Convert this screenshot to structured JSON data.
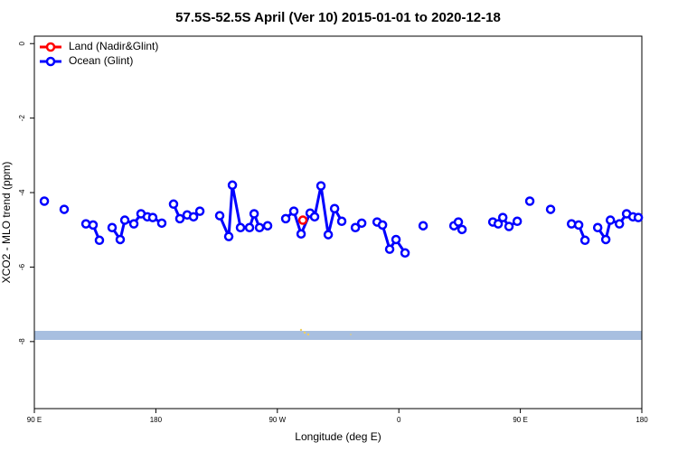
{
  "chart_data": {
    "type": "line",
    "title": "57.5S-52.5S April (Ver 10)   2015-01-01 to 2020-12-18",
    "x_label": "Longitude (deg E)",
    "y_label": "XCO2 - MLO trend (ppm)",
    "xlim": [
      90,
      540
    ],
    "ylim": [
      -9.8,
      0.2
    ],
    "xticks": [
      {
        "value": 90,
        "label": "90 E"
      },
      180,
      {
        "value": 270,
        "label": "90 W"
      },
      {
        "value": 360,
        "label": "0"
      },
      {
        "value": 450,
        "label": "90 E"
      },
      {
        "value": 540,
        "label": "180"
      }
    ],
    "yticks": [
      0,
      -2,
      -4,
      -6,
      -8
    ],
    "legend": "top-left",
    "series": [
      {
        "name": "Land (Nadir&Glint)",
        "color": "#ff0000",
        "x": [
          288.9
        ],
        "values": [
          -4.74
        ]
      },
      {
        "name": "Ocean (Glint)",
        "color": "#0000ff",
        "x": [
          97.4,
          null,
          112.1,
          null,
          128.2,
          133.5,
          138.2,
          null,
          147.6,
          153.6,
          157.0,
          163.7,
          169.0,
          173.7,
          177.7,
          184.4,
          null,
          193.1,
          197.8,
          203.2,
          207.9,
          212.6,
          null,
          227.3,
          234.0,
          236.7,
          242.7,
          249.4,
          252.8,
          256.8,
          262.8,
          null,
          276.2,
          282.2,
          287.6,
          294.3,
          297.6,
          302.3,
          307.7,
          312.4,
          317.7,
          null,
          327.8,
          332.5,
          null,
          343.9,
          347.9,
          353.2,
          357.9,
          364.6,
          null,
          378.0,
          null,
          400.8,
          404.1,
          406.8,
          null,
          429.6,
          433.6,
          437.0,
          441.6,
          447.7,
          null,
          457.0,
          null,
          472.4,
          null,
          487.9,
          493.2,
          497.9,
          null,
          507.3,
          513.3,
          516.7,
          523.4,
          528.7,
          533.4,
          537.4
        ],
        "values": [
          -4.23,
          null,
          -4.45,
          null,
          -4.84,
          -4.87,
          -5.28,
          null,
          -4.94,
          -5.26,
          -4.74,
          -4.84,
          -4.57,
          -4.65,
          -4.67,
          -4.82,
          null,
          -4.31,
          -4.7,
          -4.6,
          -4.65,
          -4.5,
          null,
          -4.62,
          -5.18,
          -3.8,
          -4.94,
          -4.94,
          -4.57,
          -4.94,
          -4.89,
          null,
          -4.7,
          -4.5,
          -5.11,
          -4.55,
          -4.65,
          -3.82,
          -5.13,
          -4.43,
          -4.77,
          null,
          -4.94,
          -4.82,
          null,
          -4.79,
          -4.87,
          -5.52,
          -5.26,
          -5.62,
          null,
          -4.89,
          null,
          -4.89,
          -4.79,
          -4.99,
          null,
          -4.79,
          -4.84,
          -4.67,
          -4.91,
          -4.77,
          null,
          -4.23,
          null,
          -4.45,
          null,
          -4.84,
          -4.87,
          -5.28,
          null,
          -4.94,
          -5.26,
          -4.74,
          -4.84,
          -4.57,
          -4.65,
          -4.67
        ]
      }
    ]
  }
}
